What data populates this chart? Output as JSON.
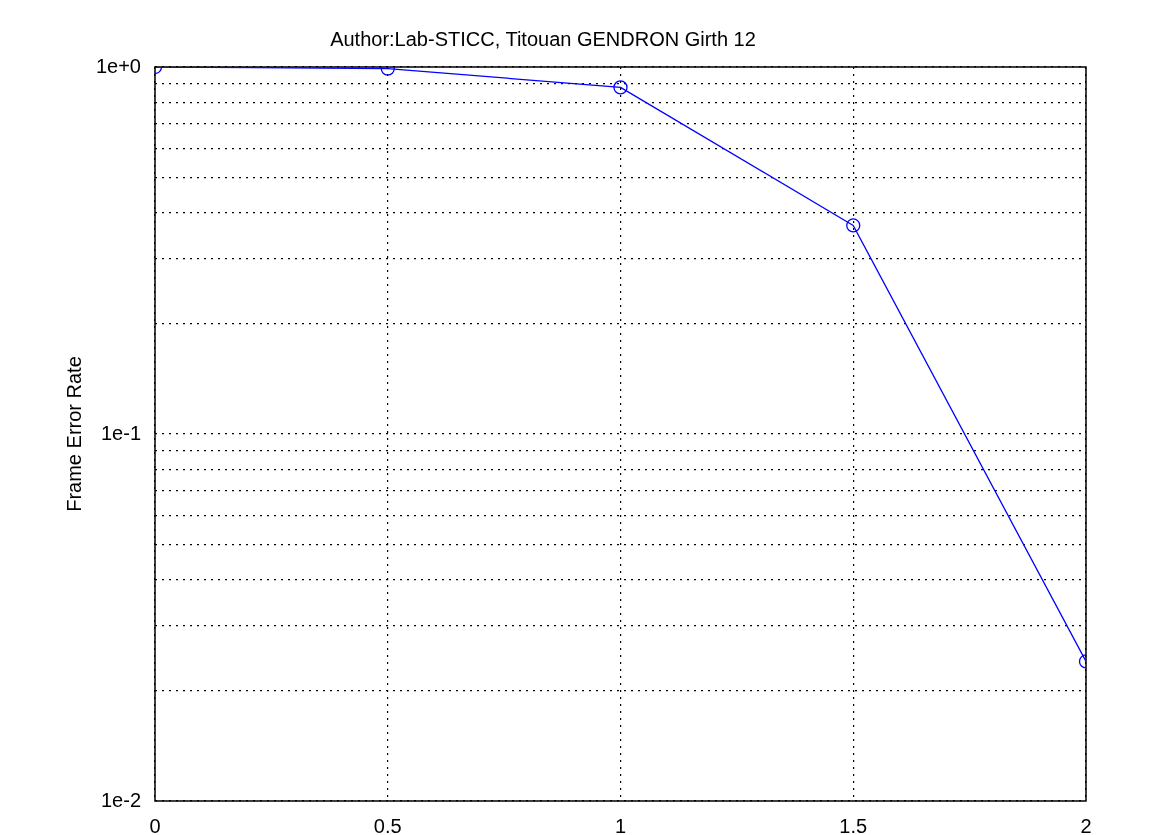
{
  "chart_data": {
    "type": "line",
    "title": "Author:Lab-STICC, Titouan GENDRON Girth 12",
    "ylabel": "Frame Error Rate",
    "x": [
      0,
      0.5,
      1,
      1.5,
      2
    ],
    "series": [
      {
        "color": "#0000ff",
        "values": [
          1.0,
          0.99,
          0.88,
          0.37,
          0.024
        ]
      }
    ],
    "xlim": [
      0,
      2
    ],
    "xticks": [
      0,
      0.5,
      1,
      1.5,
      2
    ],
    "ylim": [
      0.01,
      1
    ],
    "yticks": [
      {
        "value": 0.01,
        "label": "1e-2"
      },
      {
        "value": 0.02,
        "label": null
      },
      {
        "value": 0.03,
        "label": null
      },
      {
        "value": 0.04,
        "label": null
      },
      {
        "value": 0.05,
        "label": null
      },
      {
        "value": 0.06,
        "label": null
      },
      {
        "value": 0.07,
        "label": null
      },
      {
        "value": 0.08,
        "label": null
      },
      {
        "value": 0.09,
        "label": null
      },
      {
        "value": 0.1,
        "label": "1e-1"
      },
      {
        "value": 0.2,
        "label": null
      },
      {
        "value": 0.3,
        "label": null
      },
      {
        "value": 0.4,
        "label": null
      },
      {
        "value": 0.5,
        "label": null
      },
      {
        "value": 0.6,
        "label": null
      },
      {
        "value": 0.7,
        "label": null
      },
      {
        "value": 0.8,
        "label": null
      },
      {
        "value": 0.9,
        "label": null
      },
      {
        "value": 1,
        "label": "1e+0"
      }
    ],
    "log": "y",
    "grid": true,
    "marker": "circle",
    "line_style": "solid"
  }
}
